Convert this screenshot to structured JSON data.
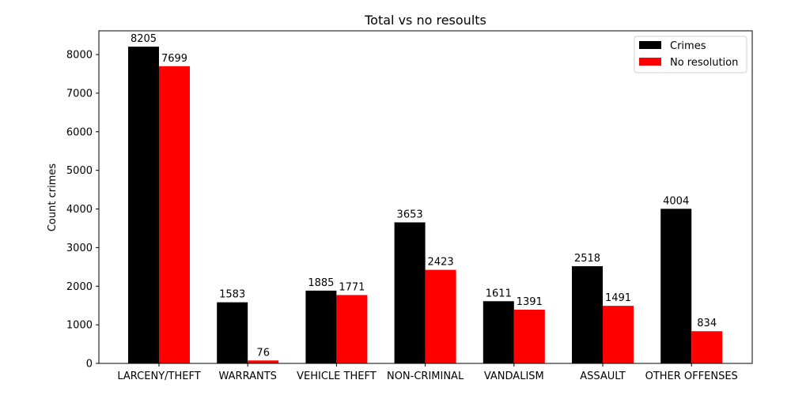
{
  "chart_data": {
    "type": "bar",
    "title": "Total vs no resoults",
    "xlabel": "",
    "ylabel": "Count crimes",
    "categories": [
      "LARCENY/THEFT",
      "WARRANTS",
      "VEHICLE THEFT",
      "NON-CRIMINAL",
      "VANDALISM",
      "ASSAULT",
      "OTHER OFFENSES"
    ],
    "series": [
      {
        "name": "Crimes",
        "color": "#000000",
        "values": [
          8205,
          1583,
          1885,
          3653,
          1611,
          2518,
          4004
        ]
      },
      {
        "name": "No resolution",
        "color": "#ff0000",
        "values": [
          7699,
          76,
          1771,
          2423,
          1391,
          1491,
          834
        ]
      }
    ],
    "ylim": [
      0,
      8615
    ],
    "yticks": [
      0,
      1000,
      2000,
      3000,
      4000,
      5000,
      6000,
      7000,
      8000
    ],
    "grid": false,
    "legend_position": "top-right"
  }
}
